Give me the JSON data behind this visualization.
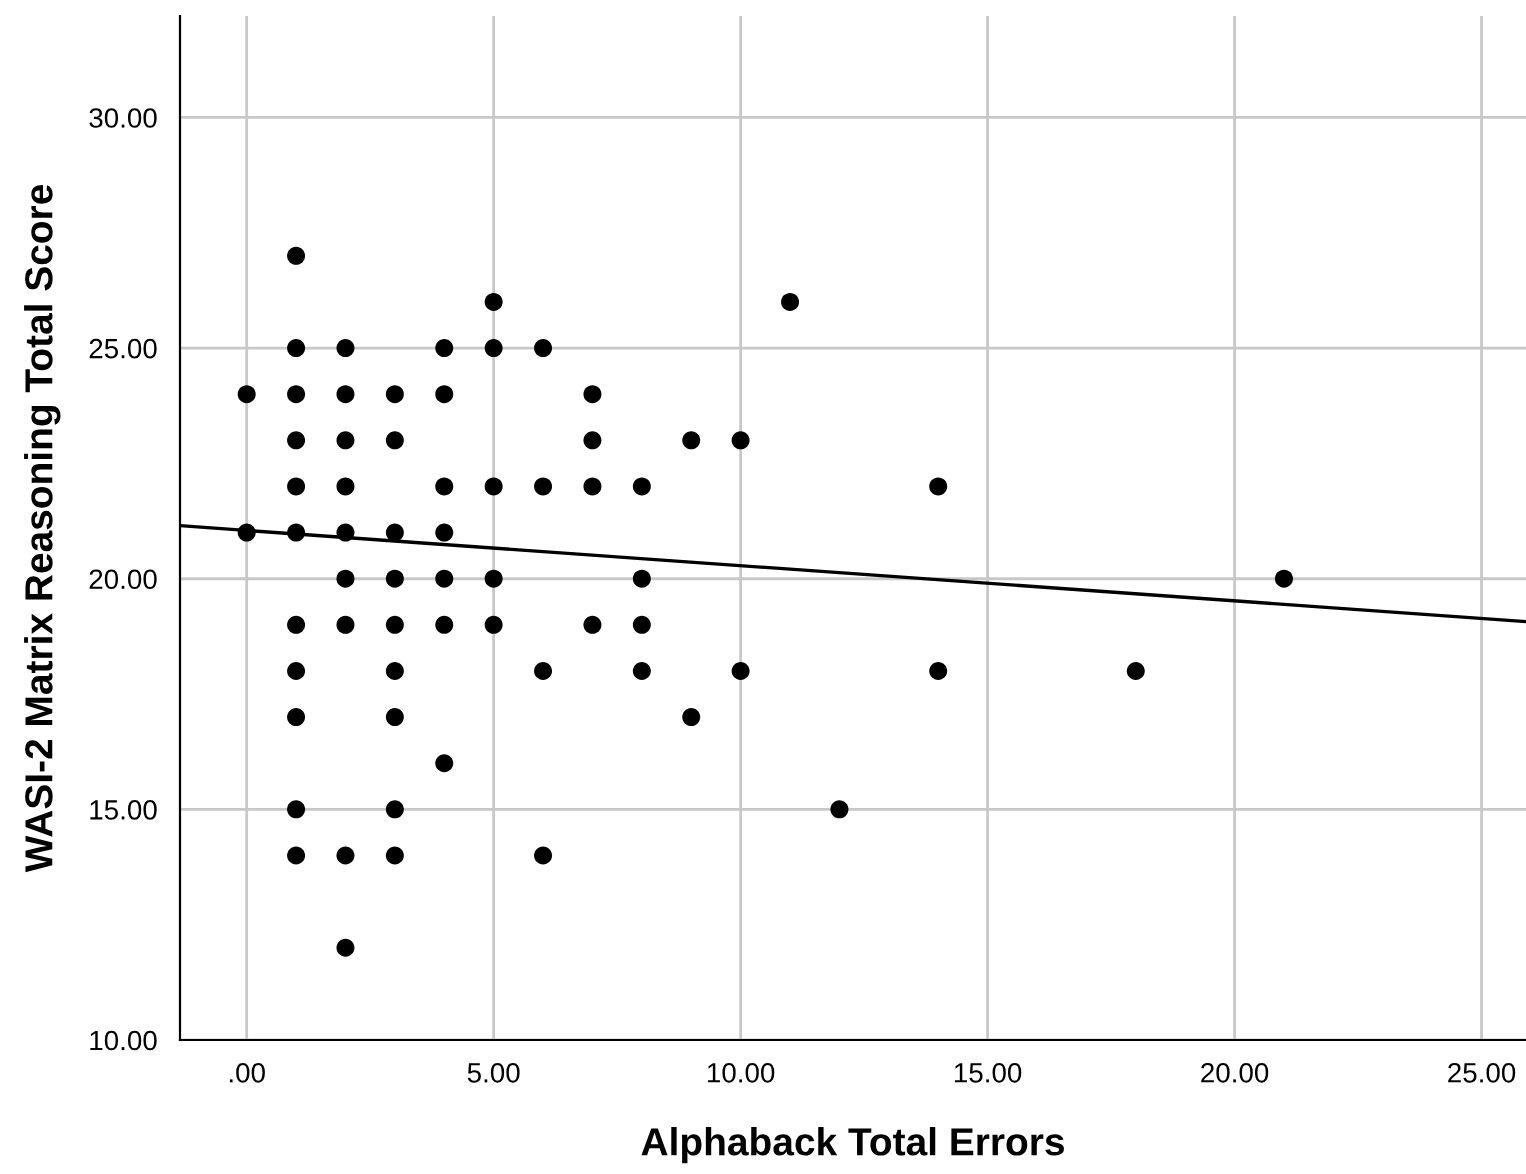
{
  "chart_data": {
    "type": "scatter",
    "xlabel": "Alphaback Total Errors",
    "ylabel": "WASI-2 Matrix Reasoning Total Score",
    "xlim": [
      -1.35,
      25.9
    ],
    "ylim": [
      10,
      32.2
    ],
    "xticks": [
      {
        "value": 0,
        "label": ".00"
      },
      {
        "value": 5,
        "label": "5.00"
      },
      {
        "value": 10,
        "label": "10.00"
      },
      {
        "value": 15,
        "label": "15.00"
      },
      {
        "value": 20,
        "label": "20.00"
      },
      {
        "value": 25,
        "label": "25.00"
      }
    ],
    "yticks": [
      {
        "value": 10,
        "label": "10.00"
      },
      {
        "value": 15,
        "label": "15.00"
      },
      {
        "value": 20,
        "label": "20.00"
      },
      {
        "value": 25,
        "label": "25.00"
      },
      {
        "value": 30,
        "label": "30.00"
      }
    ],
    "grid": true,
    "marker": "circle",
    "series": [
      {
        "color": "#000000",
        "x": [
          0,
          0,
          1,
          1,
          1,
          1,
          1,
          1,
          1,
          1,
          1,
          1,
          1,
          2,
          2,
          2,
          2,
          2,
          2,
          2,
          2,
          2,
          3,
          3,
          3,
          3,
          3,
          3,
          3,
          3,
          3,
          4,
          4,
          4,
          4,
          4,
          4,
          4,
          5,
          5,
          5,
          5,
          5,
          6,
          6,
          6,
          6,
          7,
          7,
          7,
          7,
          8,
          8,
          8,
          8,
          9,
          9,
          10,
          10,
          11,
          12,
          14,
          14,
          18,
          21
        ],
        "values": [
          24,
          21,
          27,
          25,
          24,
          23,
          22,
          21,
          19,
          18,
          17,
          15,
          14,
          25,
          24,
          23,
          22,
          21,
          20,
          19,
          14,
          12,
          24,
          23,
          21,
          20,
          19,
          18,
          17,
          15,
          14,
          25,
          24,
          22,
          21,
          20,
          19,
          16,
          26,
          25,
          22,
          20,
          19,
          25,
          22,
          18,
          14,
          24,
          23,
          22,
          19,
          22,
          20,
          19,
          18,
          23,
          17,
          23,
          18,
          26,
          15,
          22,
          18,
          18,
          20
        ]
      },
      {
        "type": "line",
        "color": "#000000",
        "line_style": "solid",
        "marker": "none",
        "x": [
          -1.35,
          25.9
        ],
        "values": [
          21.15,
          19.07
        ]
      }
    ]
  }
}
